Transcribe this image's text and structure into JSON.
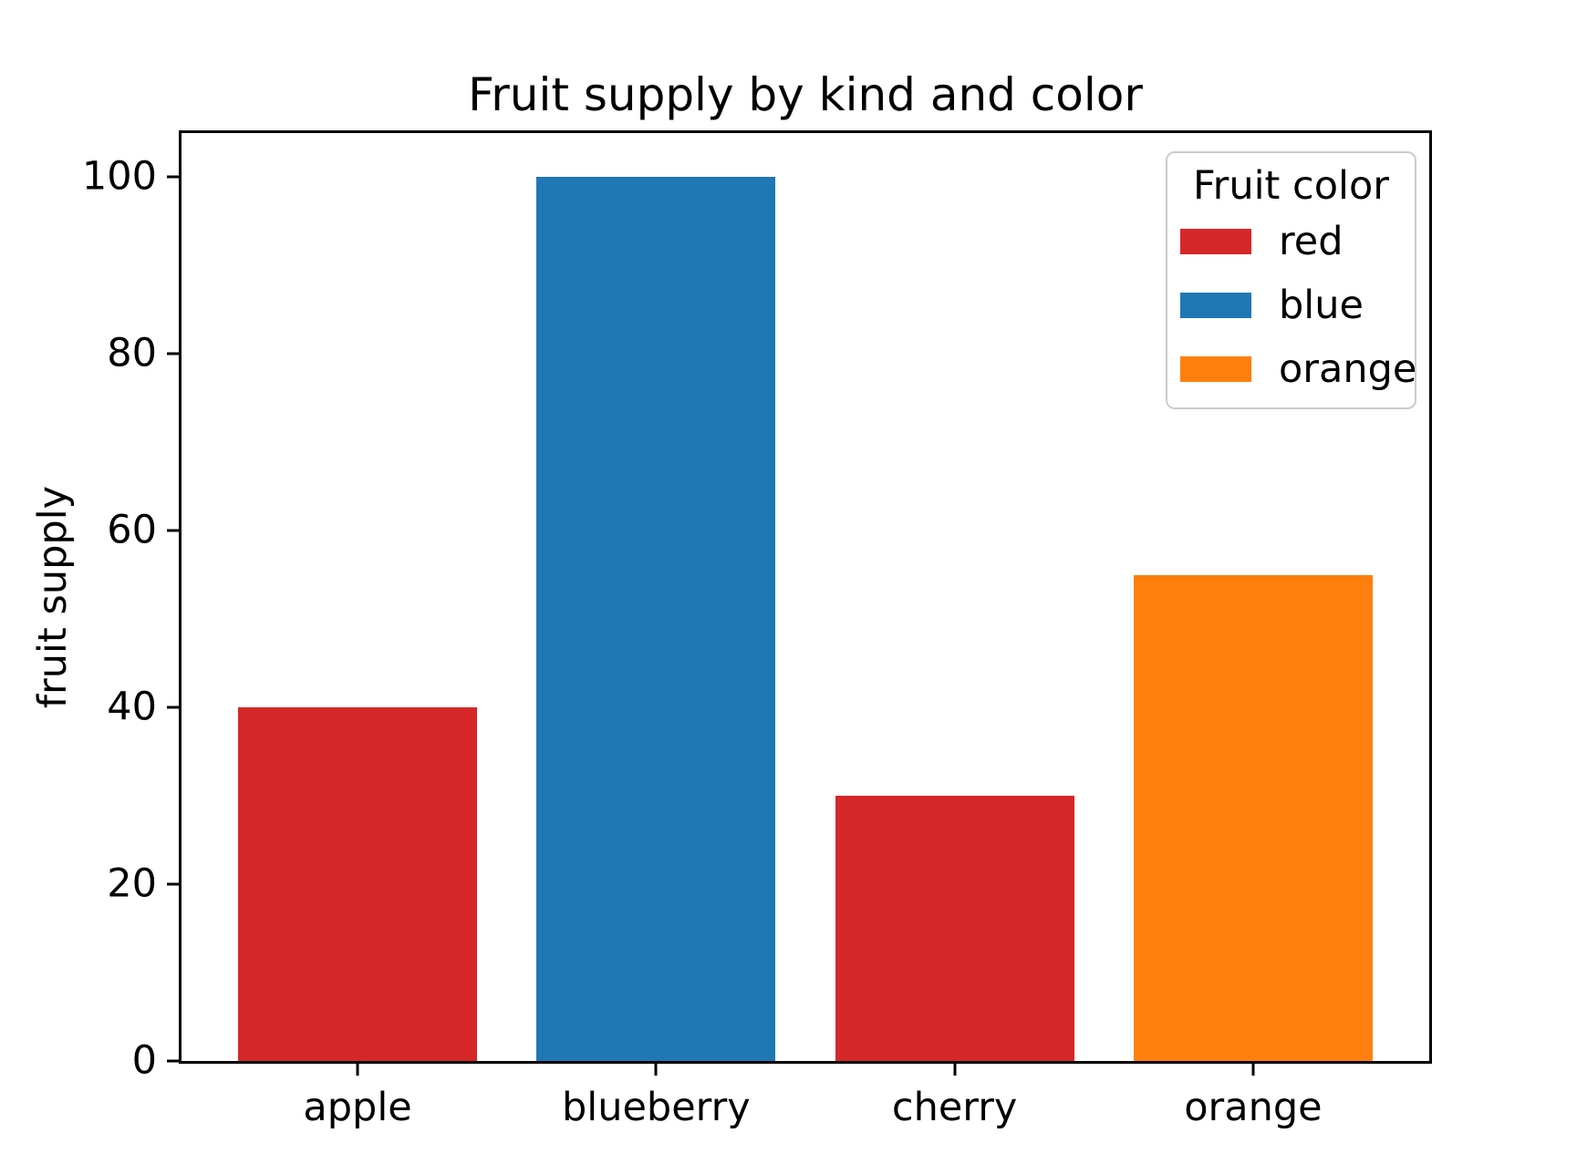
{
  "chart_data": {
    "type": "bar",
    "title": "Fruit supply by kind and color",
    "xlabel": "",
    "ylabel": "fruit supply",
    "categories": [
      "apple",
      "blueberry",
      "cherry",
      "orange"
    ],
    "values": [
      40,
      100,
      30,
      55
    ],
    "bar_colors": [
      "#d62728",
      "#1f77b4",
      "#d62728",
      "#ff7f0e"
    ],
    "bar_width": 0.8,
    "xlim": [
      -0.59,
      3.59
    ],
    "ylim": [
      0,
      105
    ],
    "yticks": [
      0,
      20,
      40,
      60,
      80,
      100
    ],
    "grid": false,
    "plot_background": "#ffffff",
    "spine_color": "#000000",
    "legend": {
      "title": "Fruit color",
      "position": "upper right",
      "entries": [
        {
          "label": "red",
          "color": "#d62728"
        },
        {
          "label": "blue",
          "color": "#1f77b4"
        },
        {
          "label": "orange",
          "color": "#ff7f0e"
        }
      ]
    }
  }
}
